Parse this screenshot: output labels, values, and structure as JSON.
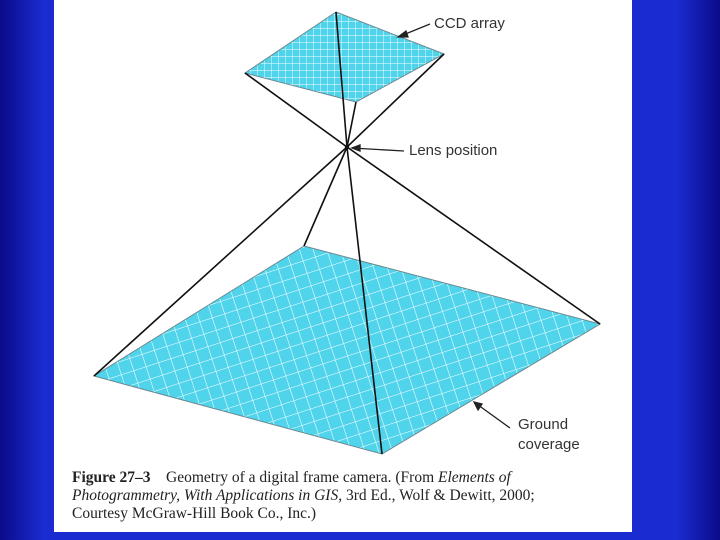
{
  "labels": {
    "ccd": "CCD array",
    "lens": "Lens position",
    "ground_line1": "Ground",
    "ground_line2": "coverage"
  },
  "caption": {
    "figure_number": "Figure 27–3",
    "text_1": "Geometry of a digital frame camera. (From ",
    "title_1": "Elements of",
    "title_2": "Photogrammetry, With Applications in GIS",
    "text_2": ", 3rd Ed., Wolf & Dewitt, 2000;",
    "text_3": "Courtesy McGraw-Hill Book Co., Inc.)"
  },
  "colors": {
    "grid_fill": "#4fd4ec",
    "grid_line": "#ffffff",
    "outline": "#111111",
    "background": "#1a2cd0"
  }
}
